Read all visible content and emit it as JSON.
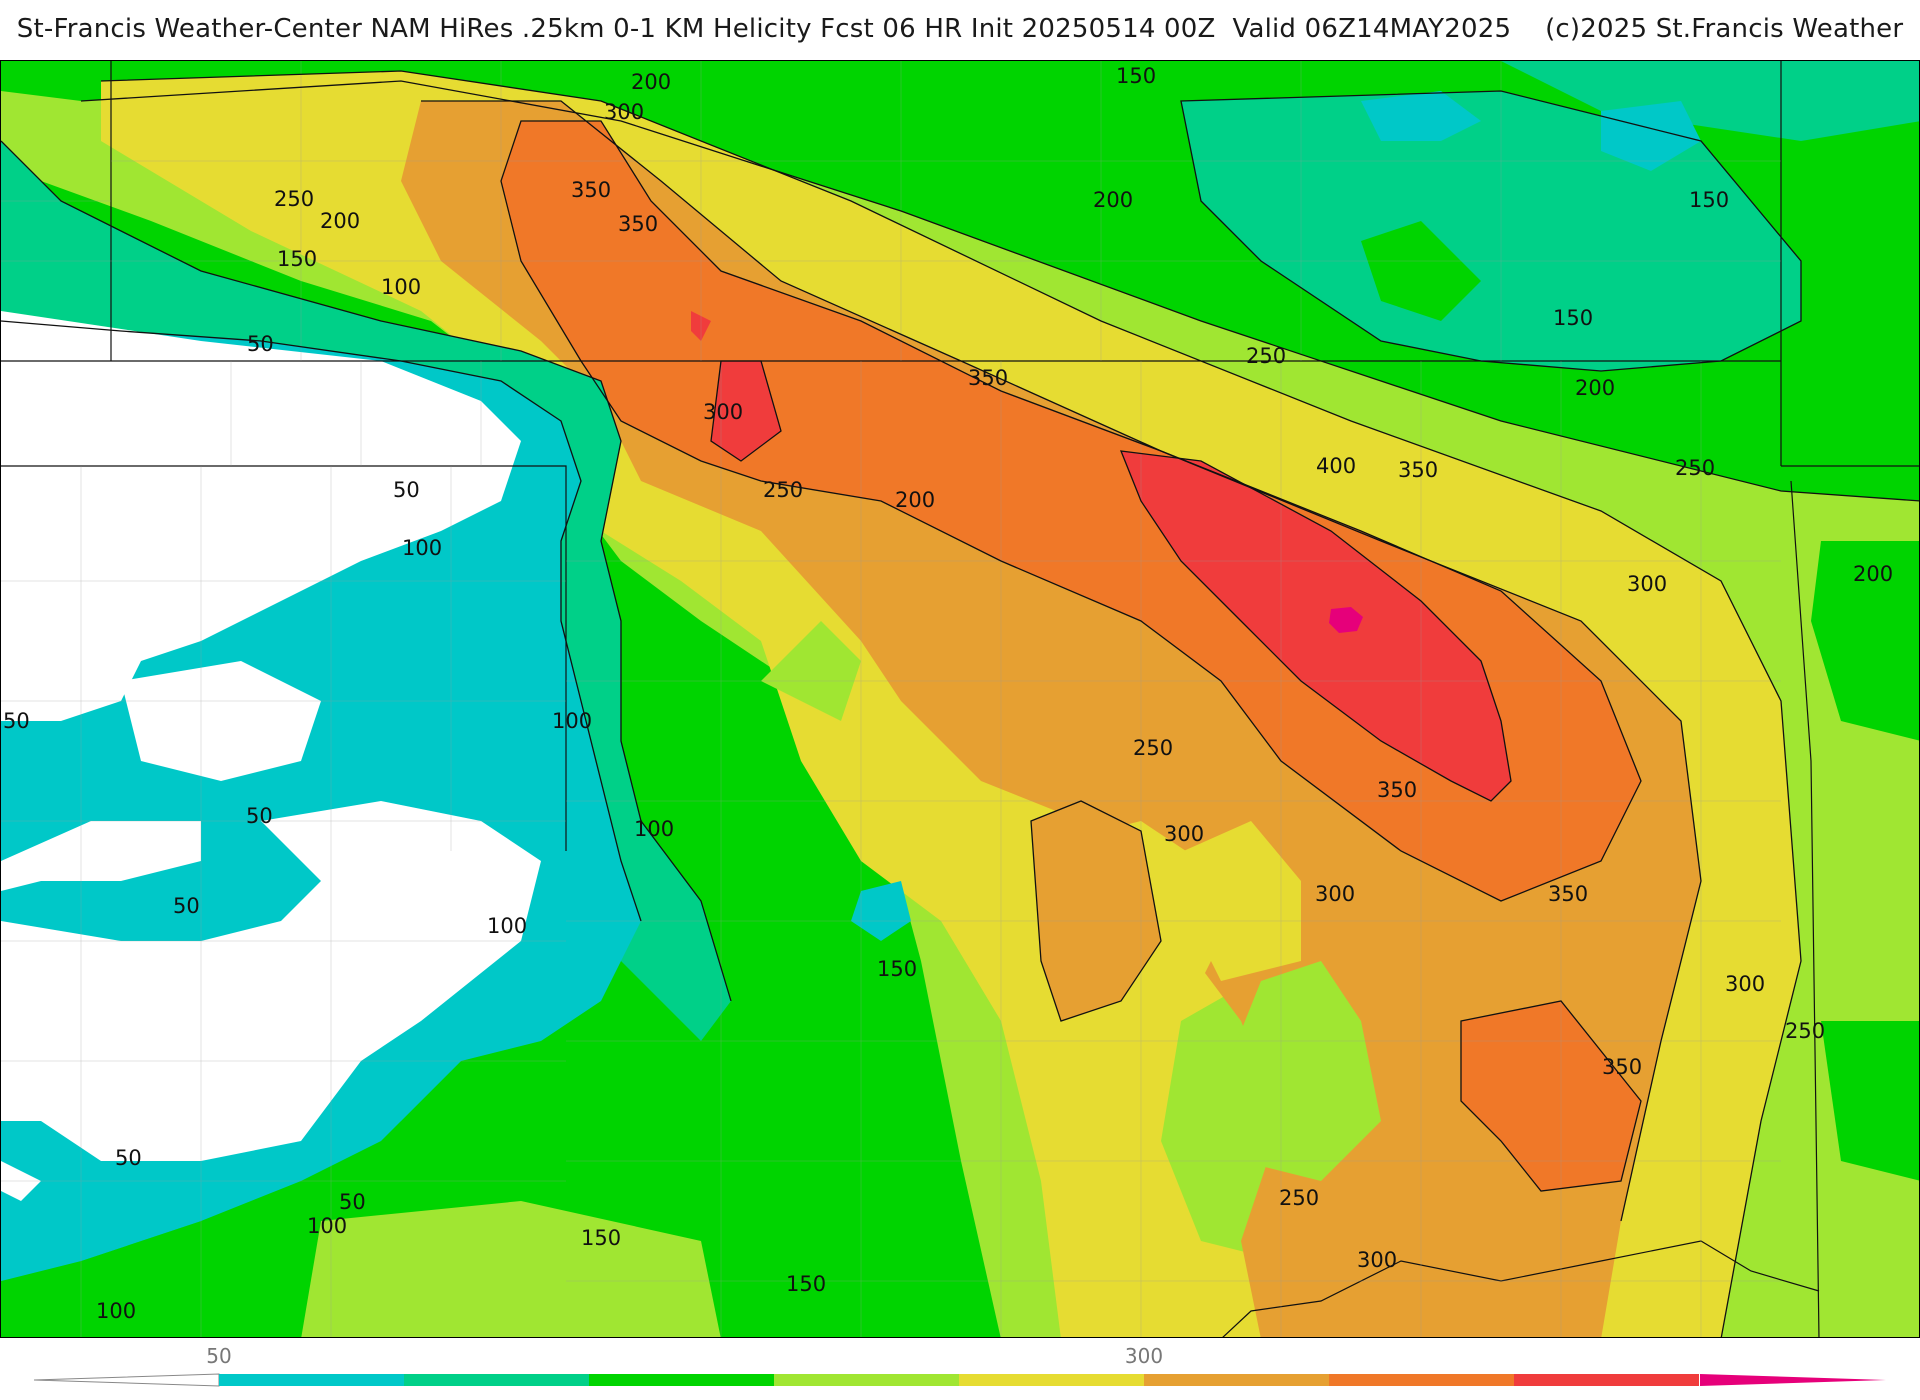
{
  "header": {
    "title": "St-Francis Weather-Center NAM HiRes .25km 0-1 KM Helicity Fcst 06 HR Init 20250514 00Z  Valid 06Z14MAY2025    (c)2025 St.Francis Weather"
  },
  "map": {
    "field": "0-1 KM Helicity",
    "contour_labels": [
      {
        "text": "200"
      },
      {
        "text": "300"
      },
      {
        "text": "150"
      },
      {
        "text": "350"
      },
      {
        "text": "350"
      },
      {
        "text": "250"
      },
      {
        "text": "200"
      },
      {
        "text": "150"
      },
      {
        "text": "100"
      },
      {
        "text": "50"
      },
      {
        "text": "200"
      },
      {
        "text": "150"
      },
      {
        "text": "150"
      },
      {
        "text": "250"
      },
      {
        "text": "200"
      },
      {
        "text": "350"
      },
      {
        "text": "300"
      },
      {
        "text": "250"
      },
      {
        "text": "200"
      },
      {
        "text": "400"
      },
      {
        "text": "350"
      },
      {
        "text": "250"
      },
      {
        "text": "300"
      },
      {
        "text": "200"
      },
      {
        "text": "50"
      },
      {
        "text": "100"
      },
      {
        "text": "50"
      },
      {
        "text": "100"
      },
      {
        "text": "250"
      },
      {
        "text": "50"
      },
      {
        "text": "100"
      },
      {
        "text": "350"
      },
      {
        "text": "300"
      },
      {
        "text": "50"
      },
      {
        "text": "100"
      },
      {
        "text": "300"
      },
      {
        "text": "350"
      },
      {
        "text": "150"
      },
      {
        "text": "300"
      },
      {
        "text": "250"
      },
      {
        "text": "350"
      },
      {
        "text": "50"
      },
      {
        "text": "50"
      },
      {
        "text": "100"
      },
      {
        "text": "150"
      },
      {
        "text": "250"
      },
      {
        "text": "300"
      },
      {
        "text": "150"
      },
      {
        "text": "100"
      }
    ]
  },
  "colorbar": {
    "ticks": [
      {
        "label": "50"
      },
      {
        "label": "300"
      }
    ],
    "colors": [
      "#00c8c8",
      "#00d088",
      "#00d400",
      "#a0e632",
      "#e6dc32",
      "#e6a032",
      "#f07828",
      "#f03c3c",
      "#e6007a"
    ]
  }
}
